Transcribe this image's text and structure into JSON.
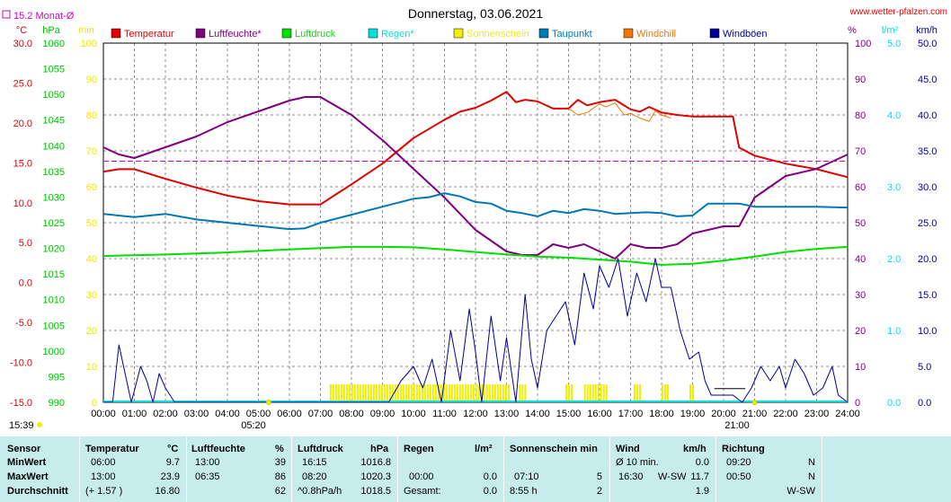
{
  "chart_data": {
    "type": "line",
    "title": "Donnerstag, 03.06.2021",
    "website": "www.wetter-pfalzen.com",
    "avg_label": "15.2 Monat-Ø",
    "avg_value": 15.2,
    "start_time": "15:39",
    "sunrise": "05:20",
    "sunset": "21:00",
    "axis_units": {
      "temp": "°C",
      "pressure": "hPa",
      "minutes": "min",
      "percent": "%",
      "rain": "l/m²",
      "wind": "km/h"
    },
    "x_ticks": [
      "00:00",
      "01:00",
      "02:00",
      "03:00",
      "04:00",
      "05:00",
      "06:00",
      "07:00",
      "08:00",
      "09:00",
      "10:00",
      "11:00",
      "12:00",
      "13:00",
      "14:00",
      "15:00",
      "16:00",
      "17:00",
      "18:00",
      "19:00",
      "20:00",
      "21:00",
      "22:00",
      "23:00",
      "24:00"
    ],
    "axes": {
      "temp": {
        "range": [
          -15,
          30
        ],
        "ticks": [
          "30.0",
          "25.0",
          "20.0",
          "15.0",
          "10.0",
          "5.0",
          "0.0",
          "-5.0",
          "-10.0",
          "-15.0"
        ]
      },
      "pressure": {
        "range": [
          990,
          1060
        ],
        "ticks": [
          "1060",
          "1055",
          "1050",
          "1045",
          "1040",
          "1035",
          "1030",
          "1025",
          "1020",
          "1015",
          "1010",
          "1005",
          "1000",
          "995",
          "990"
        ]
      },
      "minutes": {
        "range": [
          0,
          100
        ],
        "ticks": [
          "100",
          "90",
          "80",
          "70",
          "60",
          "50",
          "40",
          "30",
          "20",
          "10",
          "0"
        ]
      },
      "percent": {
        "range": [
          0,
          100
        ],
        "ticks": [
          "100",
          "90",
          "80",
          "70",
          "60",
          "50",
          "40",
          "30",
          "20",
          "10",
          "0"
        ]
      },
      "rain": {
        "range": [
          0,
          5
        ],
        "ticks": [
          "5.0",
          "4.0",
          "3.0",
          "2.0",
          "1.0",
          "0.0"
        ]
      },
      "wind": {
        "range": [
          0,
          50
        ],
        "ticks": [
          "50.0",
          "45.0",
          "40.0",
          "35.0",
          "30.0",
          "25.0",
          "20.0",
          "15.0",
          "10.0",
          "5.0",
          "0.0"
        ]
      }
    },
    "legend": [
      "Temperatur",
      "Luftfeuchte*",
      "Luftdruck",
      "Regen*",
      "Sonnenschein",
      "Taupunkt",
      "Windchill",
      "Windböen"
    ],
    "colors": {
      "Temperatur": "#e00000",
      "Luftfeuchte*": "#800080",
      "Luftdruck": "#00e000",
      "Regen*": "#00e0e0",
      "Sonnenschein": "#f0f000",
      "Taupunkt": "#0078b4",
      "Windchill": "#f07800",
      "Windböen": "#000096"
    },
    "series": [
      {
        "name": "Temperatur",
        "axis": "temp",
        "x": [
          0,
          0.5,
          1,
          2,
          3,
          4,
          5,
          6,
          7,
          8,
          9,
          10,
          11,
          11.5,
          12,
          12.5,
          13,
          13.3,
          13.6,
          14,
          14.5,
          15,
          15.3,
          15.6,
          16,
          16.5,
          17,
          17.3,
          17.6,
          18,
          18.5,
          19,
          19.5,
          20,
          20.3,
          20.5,
          21,
          22,
          23,
          24
        ],
        "y": [
          13.9,
          14.2,
          14.2,
          13.0,
          11.9,
          10.9,
          10.2,
          9.8,
          9.8,
          12.3,
          14.9,
          18.1,
          20.4,
          21.4,
          21.9,
          22.8,
          23.9,
          22.6,
          22.9,
          22.7,
          21.8,
          21.8,
          22.9,
          22.2,
          22.6,
          22.9,
          21.7,
          21.4,
          22.0,
          21.3,
          21.0,
          20.8,
          20.8,
          20.8,
          20.8,
          16.9,
          15.9,
          14.9,
          14.2,
          13.2
        ]
      },
      {
        "name": "Luftfeuchte*",
        "axis": "percent",
        "x": [
          0,
          0.5,
          1,
          2,
          3,
          4,
          5,
          6,
          6.5,
          7,
          8,
          9,
          10,
          11,
          12,
          13,
          13.5,
          14,
          14.5,
          15,
          15.5,
          16,
          16.5,
          17,
          17.5,
          18,
          18.5,
          19,
          19.5,
          20,
          20.5,
          21,
          22,
          23,
          24
        ],
        "y": [
          71,
          69,
          68,
          71,
          74,
          78,
          81,
          84,
          85,
          85,
          80,
          73,
          65,
          57,
          48,
          42,
          41,
          41,
          44,
          43,
          44,
          42,
          40,
          44,
          43,
          43,
          44,
          47,
          48,
          49,
          49,
          57,
          63,
          65,
          69
        ]
      },
      {
        "name": "Luftdruck",
        "axis": "pressure",
        "x": [
          0,
          2,
          4,
          6,
          8,
          9,
          10,
          11,
          12,
          13,
          14,
          15,
          16,
          17,
          18,
          19,
          20,
          21,
          22,
          23,
          24
        ],
        "y": [
          1018.5,
          1018.8,
          1019.2,
          1019.8,
          1020.3,
          1020.3,
          1020.2,
          1019.8,
          1019.3,
          1018.8,
          1018.4,
          1018.2,
          1017.8,
          1017.4,
          1016.8,
          1017.0,
          1017.6,
          1018.4,
          1019.3,
          1019.9,
          1020.3
        ]
      },
      {
        "name": "Taupunkt",
        "axis": "temp",
        "x": [
          0,
          1,
          2,
          3,
          4,
          5,
          6,
          6.5,
          7,
          8,
          9,
          10,
          10.5,
          11,
          11.5,
          12,
          12.5,
          13,
          13.5,
          14,
          14.5,
          15,
          15.5,
          16,
          16.5,
          17,
          17.5,
          18,
          18.5,
          19,
          19.5,
          20,
          20.5,
          21,
          22,
          23,
          24
        ],
        "y": [
          8.6,
          8.2,
          8.6,
          7.9,
          7.5,
          7.1,
          6.7,
          6.8,
          7.5,
          8.5,
          9.5,
          10.5,
          10.7,
          11.2,
          10.8,
          10.1,
          9.9,
          9.0,
          8.7,
          8.3,
          9.0,
          8.7,
          9.2,
          9.0,
          8.6,
          8.7,
          8.8,
          8.7,
          8.3,
          8.4,
          9.9,
          9.9,
          9.9,
          9.5,
          9.5,
          9.5,
          9.4
        ]
      },
      {
        "name": "Windchill",
        "axis": "temp",
        "x": [
          15,
          15.3,
          15.6,
          16,
          16.2,
          16.5,
          16.8,
          17,
          17.3,
          17.6,
          17.8,
          18,
          18.3
        ],
        "y": [
          21.8,
          21.0,
          21.3,
          22.4,
          22.0,
          22.5,
          21.0,
          21.2,
          20.6,
          20.2,
          21.5,
          21.0,
          20.6
        ]
      },
      {
        "name": "Windböen",
        "axis": "wind",
        "x": [
          0,
          0.3,
          0.5,
          0.7,
          0.9,
          1.2,
          1.4,
          1.6,
          1.8,
          2.0,
          2.3,
          2.5,
          3,
          5,
          7,
          8,
          9,
          9.2,
          9.6,
          10,
          10.3,
          10.6,
          10.9,
          11.2,
          11.5,
          11.8,
          12,
          12.2,
          12.5,
          12.8,
          13,
          13.3,
          13.6,
          13.8,
          14,
          14.3,
          14.6,
          14.9,
          15.2,
          15.5,
          15.8,
          16,
          16.3,
          16.6,
          16.9,
          17.2,
          17.5,
          17.8,
          18,
          18.3,
          18.6,
          18.9,
          19.2,
          19.4,
          19.6,
          19.8,
          20,
          20.3,
          20.6,
          20.9,
          21.2,
          21.5,
          21.8,
          22,
          22.3,
          22.6,
          22.9,
          23.2,
          23.5,
          23.7,
          24
        ],
        "y": [
          0,
          0,
          8,
          4,
          0,
          5,
          3,
          0,
          4,
          2,
          0,
          0,
          0,
          0,
          0,
          0,
          0,
          0,
          3,
          5,
          2,
          6,
          0,
          10,
          3,
          13,
          7,
          0,
          12,
          3,
          9,
          0,
          15,
          6,
          2,
          10,
          12,
          14,
          8,
          18,
          13,
          19,
          16,
          20,
          12,
          18,
          14,
          20,
          16,
          16,
          10,
          6,
          7,
          3,
          1,
          1,
          1,
          1,
          0,
          2,
          5,
          3,
          5,
          2,
          6,
          4,
          1,
          2,
          5,
          1,
          0
        ]
      }
    ],
    "sunshine_bars": [
      {
        "from": 7.3,
        "to": 13.1
      },
      {
        "from": 13.4,
        "to": 13.6
      },
      {
        "from": 14.9,
        "to": 15.1
      },
      {
        "from": 15.5,
        "to": 16.2
      },
      {
        "from": 17.1,
        "to": 17.3
      },
      {
        "from": 18.0,
        "to": 18.2
      },
      {
        "from": 18.9,
        "to": 19.0
      }
    ],
    "wind_avg_segment": {
      "from": 19.7,
      "to": 20.7,
      "value": 1.9
    }
  },
  "stats": {
    "header": {
      "sensor": "Sensor",
      "temp": "Temperatur",
      "temp_unit": "°C",
      "hum": "Luftfeuchte",
      "hum_unit": "%",
      "press": "Luftdruck",
      "press_unit": "hPa",
      "rain": "Regen",
      "rain_unit": "l/m²",
      "sun": "Sonnenschein min",
      "wind": "Wind",
      "wind_unit": "km/h",
      "dir": "Richtung"
    },
    "rows": [
      {
        "label": "MinWert",
        "temp_time": "06:00",
        "temp_val": "9.7",
        "hum_time": "13:00",
        "hum_val": "39",
        "press_time": "16:15",
        "press_val": "1016.8",
        "rain_time": "",
        "rain_val": "",
        "sun_time": "",
        "sun_val": "",
        "wind_time": "Ø 10 min.",
        "wind_dir": "",
        "wind_val": "0.0",
        "dir_time": "09:20",
        "dir_val": "N"
      },
      {
        "label": "MaxWert",
        "temp_time": "13:00",
        "temp_val": "23.9",
        "hum_time": "06:35",
        "hum_val": "86",
        "press_time": "08:20",
        "press_val": "1020.3",
        "rain_time": "00:00",
        "rain_val": "0.0",
        "sun_time": "07:10",
        "sun_val": "5",
        "wind_time": "16:30",
        "wind_dir": "W-SW",
        "wind_val": "11.7",
        "dir_time": "00:50",
        "dir_val": "N"
      },
      {
        "label": "Durchschnitt",
        "temp_time": "(+ 1.57 )",
        "temp_val": "16.80",
        "hum_time": "",
        "hum_val": "62",
        "press_time": "^0.8hPa/h",
        "press_val": "1018.5",
        "rain_time": "Gesamt:",
        "rain_val": "0.0",
        "sun_time": "8:55 h",
        "sun_val": "2",
        "wind_time": "",
        "wind_dir": "",
        "wind_val": "1.9",
        "dir_time": "",
        "dir_val": "W-SW"
      }
    ]
  }
}
